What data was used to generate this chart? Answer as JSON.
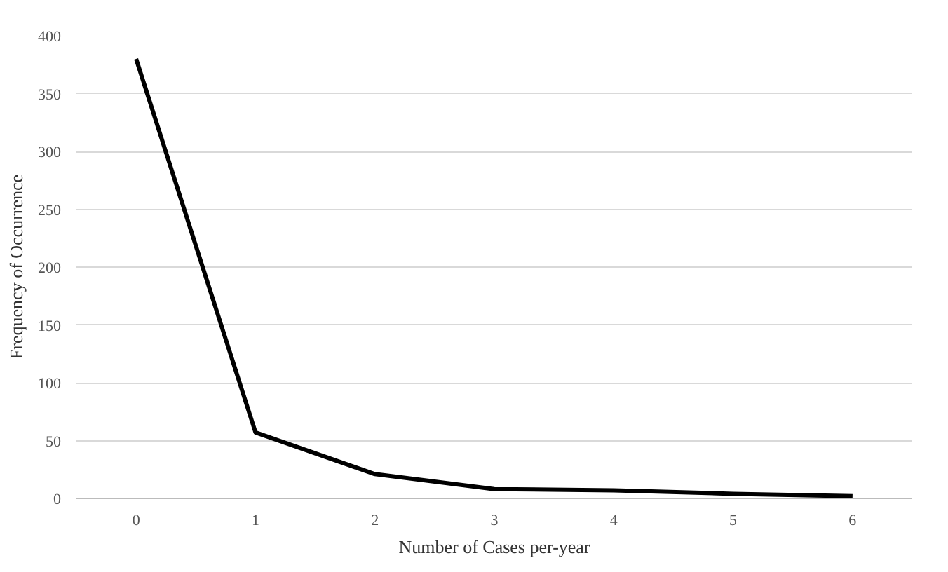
{
  "chart_data": {
    "type": "line",
    "xlabel": "Number of Cases per-year",
    "ylabel": "Frequency of Occurrence",
    "categories": [
      "0",
      "1",
      "2",
      "3",
      "4",
      "5",
      "6"
    ],
    "series": [
      {
        "color": "#000000",
        "values": [
          380,
          57,
          21,
          8,
          7,
          4,
          2
        ]
      }
    ],
    "ylim": [
      0,
      400
    ],
    "yticks": [
      0,
      50,
      100,
      150,
      200,
      250,
      300,
      350,
      400
    ],
    "grid": "y",
    "marker": "none",
    "line_style": "solid"
  }
}
